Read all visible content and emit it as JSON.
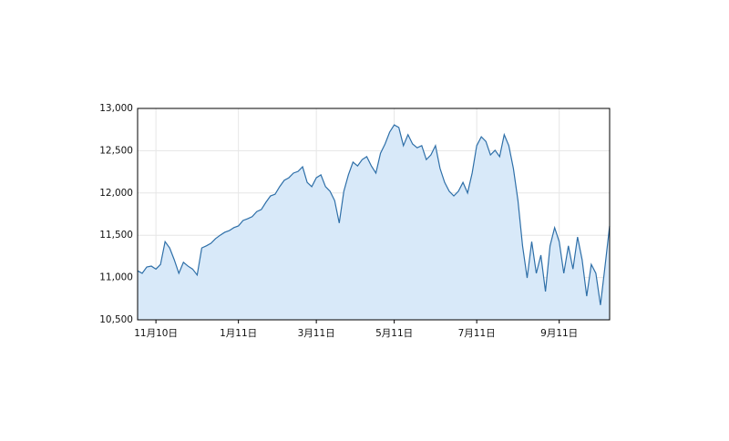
{
  "chart_data": {
    "type": "area",
    "categories": [
      null,
      null,
      null,
      null,
      "11月10日",
      null,
      null,
      null,
      null,
      null,
      null,
      null,
      null,
      null,
      null,
      null,
      null,
      null,
      null,
      null,
      null,
      null,
      "1月11日",
      null,
      null,
      null,
      null,
      null,
      null,
      null,
      null,
      null,
      null,
      null,
      null,
      null,
      null,
      null,
      null,
      "3月11日",
      null,
      null,
      null,
      null,
      null,
      null,
      null,
      null,
      null,
      null,
      null,
      null,
      null,
      null,
      null,
      null,
      "5月11日",
      null,
      null,
      null,
      null,
      null,
      null,
      null,
      null,
      null,
      null,
      null,
      null,
      null,
      null,
      null,
      null,
      null,
      "7月11日",
      null,
      null,
      null,
      null,
      null,
      null,
      null,
      null,
      null,
      null,
      null,
      null,
      null,
      null,
      null,
      null,
      null,
      "9月11日",
      null,
      null,
      null,
      null,
      null,
      null,
      null,
      null,
      null,
      null,
      null
    ],
    "values": [
      11080,
      11050,
      11125,
      11135,
      11100,
      11155,
      11425,
      11350,
      11210,
      11050,
      11180,
      11135,
      11100,
      11030,
      11350,
      11375,
      11405,
      11460,
      11500,
      11535,
      11555,
      11590,
      11610,
      11675,
      11695,
      11720,
      11780,
      11805,
      11890,
      11965,
      11985,
      12075,
      12150,
      12180,
      12235,
      12255,
      12310,
      12125,
      12075,
      12180,
      12215,
      12075,
      12020,
      11910,
      11645,
      12020,
      12215,
      12365,
      12320,
      12395,
      12430,
      12320,
      12235,
      12470,
      12580,
      12720,
      12805,
      12775,
      12560,
      12690,
      12580,
      12535,
      12560,
      12395,
      12450,
      12560,
      12290,
      12125,
      12020,
      11965,
      12020,
      12125,
      12000,
      12235,
      12560,
      12665,
      12610,
      12450,
      12505,
      12430,
      12690,
      12560,
      12290,
      11910,
      11375,
      10995,
      11425,
      11050,
      11265,
      10835,
      11375,
      11590,
      11425,
      11050,
      11375,
      11100,
      11480,
      11210,
      10780,
      11155,
      11050,
      10675,
      11135,
      11610
    ],
    "color": "#2e6fa8",
    "fill": "#d8e9f9",
    "ylim": [
      10500,
      13000
    ],
    "yticks": [
      {
        "value": 10500,
        "label": "10,500"
      },
      {
        "value": 11000,
        "label": "11,000"
      },
      {
        "value": 11500,
        "label": "11,500"
      },
      {
        "value": 12000,
        "label": "12,000"
      },
      {
        "value": 12500,
        "label": "12,500"
      },
      {
        "value": 13000,
        "label": "13,000"
      }
    ],
    "grid": true
  }
}
